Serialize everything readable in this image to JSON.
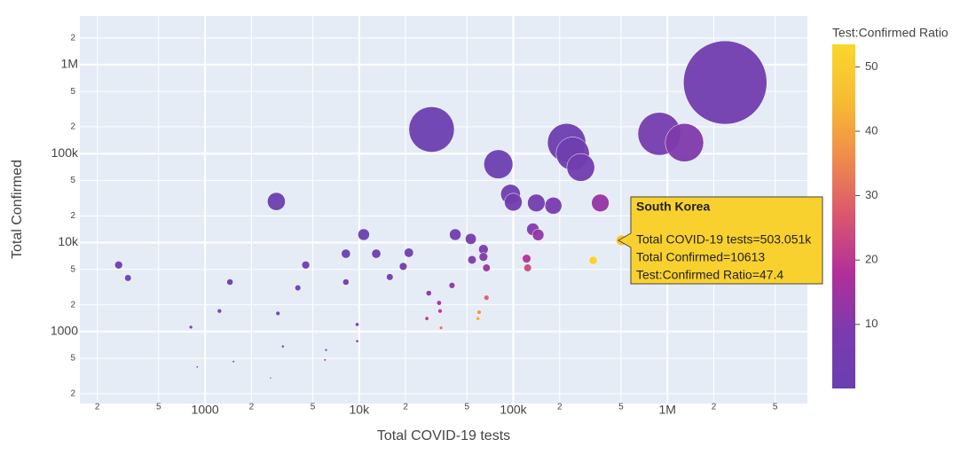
{
  "chart_data": {
    "type": "scatter",
    "x_label": "Total COVID-19 tests",
    "y_label": "Total Confirmed",
    "colorbar_title": "Test:Confirmed Ratio",
    "log_x": true,
    "log_y": true,
    "grid": true,
    "xlim": [
      154,
      8100000
    ],
    "ylim": [
      155,
      3530000
    ],
    "clim": [
      0.05,
      53.5
    ],
    "cticks": [
      10,
      20,
      30,
      40,
      50
    ],
    "colorscale": [
      "#6a3fb0",
      "#7c3bad",
      "#b12f9a",
      "#d9566f",
      "#ef8a4c",
      "#f7bb33",
      "#f9d72a"
    ],
    "xticks": [
      {
        "value": 200,
        "label": "2"
      },
      {
        "value": 500,
        "label": "5"
      },
      1000,
      {
        "value": 2000,
        "label": "2"
      },
      {
        "value": 5000,
        "label": "5"
      },
      {
        "value": 10000,
        "label": "10k"
      },
      {
        "value": 20000,
        "label": "2"
      },
      {
        "value": 50000,
        "label": "5"
      },
      {
        "value": 100000,
        "label": "100k"
      },
      {
        "value": 200000,
        "label": "2"
      },
      {
        "value": 500000,
        "label": "5"
      },
      {
        "value": 1000000,
        "label": "1M"
      },
      {
        "value": 2000000,
        "label": "2"
      },
      {
        "value": 5000000,
        "label": "5"
      }
    ],
    "yticks": [
      {
        "value": 200,
        "label": "2"
      },
      {
        "value": 500,
        "label": "5"
      },
      1000,
      {
        "value": 2000,
        "label": "2"
      },
      {
        "value": 5000,
        "label": "5"
      },
      {
        "value": 10000,
        "label": "10k"
      },
      {
        "value": 20000,
        "label": "2"
      },
      {
        "value": 50000,
        "label": "5"
      },
      {
        "value": 100000,
        "label": "100k"
      },
      {
        "value": 200000,
        "label": "2"
      },
      {
        "value": 500000,
        "label": "5"
      },
      {
        "value": 1000000,
        "label": "1M"
      },
      {
        "value": 2000000,
        "label": "2"
      }
    ],
    "x": [
      2370000,
      887000,
      1290000,
      29500,
      222000,
      243000,
      274000,
      80000,
      96000,
      100000,
      141000,
      182000,
      367000,
      2900,
      134000,
      145000,
      10700,
      42000,
      53000,
      64000,
      64000,
      54000,
      67000,
      122000,
      124000,
      330000,
      503051,
      8200,
      12900,
      21000,
      19300,
      15800,
      4500,
      8200,
      4000,
      275,
      316,
      1450,
      1240,
      2970,
      809,
      9700,
      40000,
      28300,
      33000,
      33500,
      27500,
      60000,
      59000,
      67000,
      34000,
      3200,
      6100,
      9700,
      6000,
      1530,
      890,
      2660
    ],
    "y": [
      630000,
      167000,
      133000,
      187000,
      133000,
      100000,
      70000,
      76000,
      35000,
      28500,
      27900,
      26000,
      27900,
      29000,
      14100,
      12200,
      12300,
      12300,
      11000,
      8400,
      6900,
      6400,
      5200,
      6600,
      5200,
      6300,
      10613,
      7500,
      7500,
      7700,
      5400,
      4100,
      5600,
      3600,
      3100,
      5600,
      4000,
      3600,
      1700,
      1600,
      1120,
      1200,
      3300,
      2700,
      2100,
      1700,
      1400,
      1650,
      1400,
      2400,
      1100,
      680,
      620,
      780,
      480,
      460,
      400,
      300
    ],
    "ratio": [
      3.8,
      5.3,
      9.7,
      0.2,
      1.7,
      2.4,
      3.9,
      1.1,
      2.7,
      3.5,
      5.1,
      7.0,
      13.2,
      0.1,
      9.5,
      11.9,
      0.9,
      3.4,
      4.8,
      7.6,
      9.3,
      8.4,
      12.9,
      18.5,
      23.8,
      52,
      47.4,
      1.1,
      1.7,
      2.7,
      3.6,
      3.9,
      0.8,
      2.3,
      1.3,
      0.05,
      0.08,
      0.4,
      0.7,
      1.9,
      0.7,
      8.1,
      12.1,
      10.5,
      15.7,
      19.7,
      19.6,
      36.4,
      42,
      28,
      31,
      4.7,
      9.8,
      12.4,
      12.5,
      3.3,
      2.2,
      8.9
    ],
    "hover": {
      "title": "South Korea",
      "lines": [
        "Total COVID-19 tests=503.051k",
        "Total Confirmed=10613",
        "Test:Confirmed Ratio=47.4"
      ]
    }
  }
}
